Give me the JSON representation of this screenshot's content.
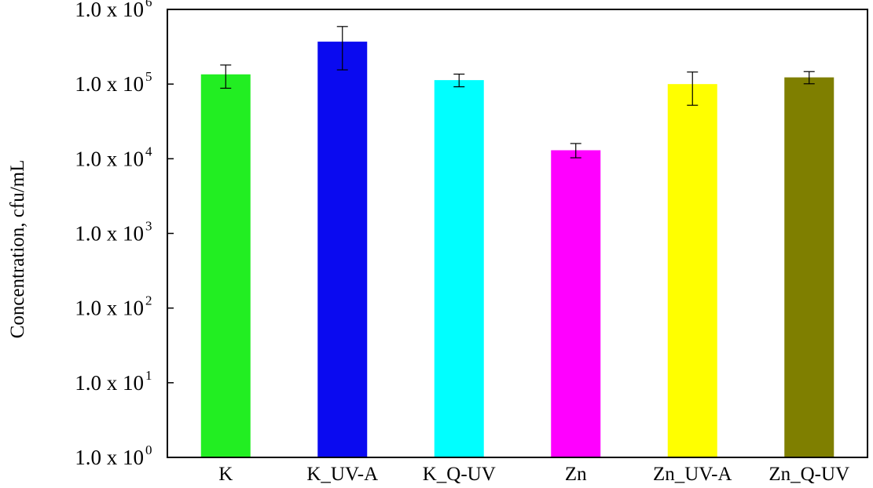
{
  "chart_data": {
    "type": "bar",
    "title": "",
    "xlabel": "",
    "ylabel": "Concentration, cfu/mL",
    "yscale": "log",
    "ylim": [
      1,
      1000000
    ],
    "grid": false,
    "legend": "none",
    "yticks": [
      {
        "value": 1,
        "mantissa": "1.0 x 10",
        "exponent": "0"
      },
      {
        "value": 10,
        "mantissa": "1.0 x 10",
        "exponent": "1"
      },
      {
        "value": 100,
        "mantissa": "1.0 x 10",
        "exponent": "2"
      },
      {
        "value": 1000,
        "mantissa": "1.0 x 10",
        "exponent": "3"
      },
      {
        "value": 10000,
        "mantissa": "1.0 x 10",
        "exponent": "4"
      },
      {
        "value": 100000,
        "mantissa": "1.0 x 10",
        "exponent": "5"
      },
      {
        "value": 1000000,
        "mantissa": "1.0 x 10",
        "exponent": "6"
      }
    ],
    "categories": [
      "K",
      "K_UV-A",
      "K_Q-UV",
      "Zn",
      "Zn_UV-A",
      "Zn_Q-UV"
    ],
    "values": [
      135000,
      370000,
      113000,
      13000,
      100000,
      123000
    ],
    "error_low": [
      88000,
      155000,
      92000,
      10300,
      52000,
      101000
    ],
    "error_high": [
      180000,
      590000,
      136000,
      16000,
      145000,
      147000
    ],
    "colors": [
      "#22ee22",
      "#0a0af0",
      "#00ffff",
      "#ff00ff",
      "#ffff00",
      "#7f7f00"
    ]
  }
}
